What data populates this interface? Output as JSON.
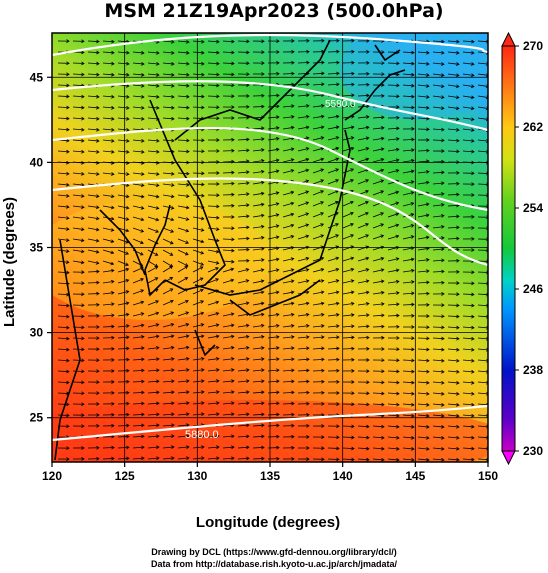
{
  "title": "MSM 21Z19Apr2023 (500.0hPa)",
  "x_axis": {
    "label": "Longitude (degrees)",
    "ticks": [
      "120",
      "125",
      "130",
      "135",
      "140",
      "145",
      "150"
    ],
    "range": [
      120,
      150
    ]
  },
  "y_axis": {
    "label": "Latitude  (degrees)",
    "ticks": [
      "25",
      "30",
      "35",
      "40",
      "45"
    ],
    "range": [
      22.4,
      47.6
    ]
  },
  "colorbar": {
    "ticks": [
      "270",
      "262",
      "254",
      "246",
      "238",
      "230"
    ],
    "min": 230,
    "max": 270
  },
  "contours": [
    {
      "label": "5580.0",
      "value": 5580
    },
    {
      "label": "5880.0",
      "value": 5880
    }
  ],
  "credits": {
    "line1": "Drawing by DCL (https://www.gfd-dennou.org/library/dcl/)",
    "line2": "Data from http://database.rish.kyoto-u.ac.jp/arch/jmadata/"
  },
  "colors": {
    "warm": "#ff3c14",
    "mid": "#ffd21e",
    "cool": "#3ccf3c",
    "cold": "#28b4ff"
  }
}
